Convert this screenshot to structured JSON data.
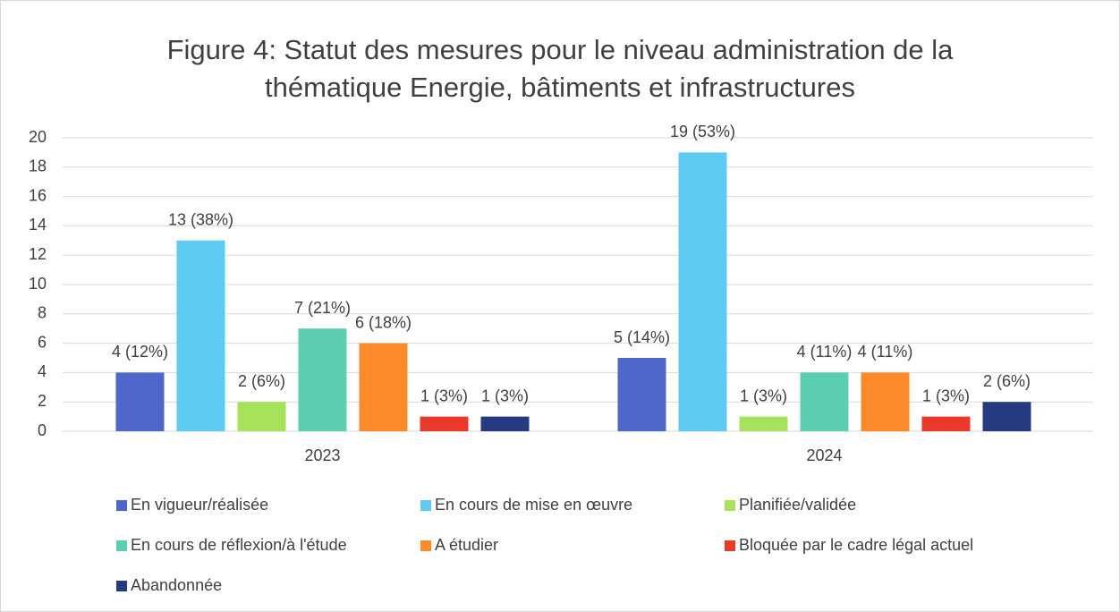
{
  "chart_data": {
    "type": "bar",
    "title": [
      "Figure 4: Statut des mesures pour le niveau administration de la",
      "thématique Energie, bâtiments et infrastructures"
    ],
    "categories": [
      "2023",
      "2024"
    ],
    "series": [
      {
        "name": "En vigueur/réalisée",
        "color": "#4f67c9",
        "values": [
          4,
          5
        ],
        "value_labels": [
          "4 (12%)",
          "5 (14%)"
        ]
      },
      {
        "name": "En cours de mise en œuvre",
        "color": "#5ecbf2",
        "values": [
          13,
          19
        ],
        "value_labels": [
          "13 (38%)",
          "19 (53%)"
        ]
      },
      {
        "name": "Planifiée/validée",
        "color": "#a6e25a",
        "values": [
          2,
          1
        ],
        "value_labels": [
          "2 (6%)",
          "1 (3%)"
        ]
      },
      {
        "name": "En cours de réflexion/à l'étude",
        "color": "#5ccfb0",
        "values": [
          7,
          4
        ],
        "value_labels": [
          "7 (21%)",
          "4 (11%)"
        ]
      },
      {
        "name": "A étudier",
        "color": "#fb8a2a",
        "values": [
          6,
          4
        ],
        "value_labels": [
          "6 (18%)",
          "4 (11%)"
        ]
      },
      {
        "name": "Bloquée par le cadre légal actuel",
        "color": "#e8392a",
        "values": [
          1,
          1
        ],
        "value_labels": [
          "1 (3%)",
          "1 (3%)"
        ]
      },
      {
        "name": "Abandonnée",
        "color": "#253a80",
        "values": [
          1,
          2
        ],
        "value_labels": [
          "1 (3%)",
          "2 (6%)"
        ]
      }
    ],
    "ylim": [
      0,
      20
    ],
    "yticks": [
      0,
      2,
      4,
      6,
      8,
      10,
      12,
      14,
      16,
      18,
      20
    ],
    "grid": true,
    "legend": "bottom"
  }
}
